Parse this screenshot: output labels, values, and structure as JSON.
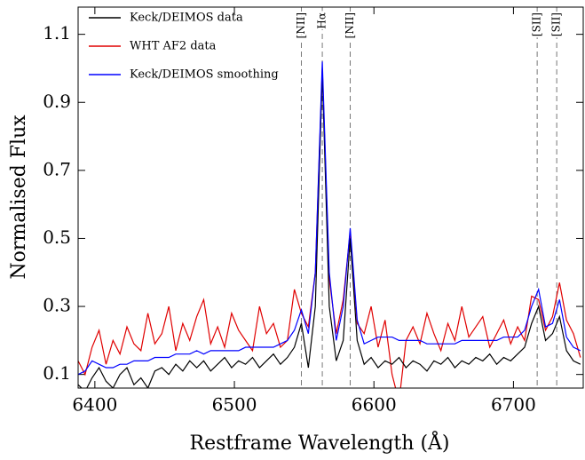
{
  "chart_data": {
    "type": "line",
    "xlabel": "Restframe Wavelength (Å)",
    "ylabel": "Normalised Flux",
    "x": [
      6388,
      6393,
      6398,
      6403,
      6408,
      6413,
      6418,
      6423,
      6428,
      6433,
      6438,
      6443,
      6448,
      6453,
      6458,
      6463,
      6468,
      6473,
      6478,
      6483,
      6488,
      6493,
      6498,
      6503,
      6508,
      6513,
      6518,
      6523,
      6528,
      6533,
      6538,
      6543,
      6548,
      6553,
      6558,
      6563,
      6568,
      6573,
      6578,
      6583,
      6588,
      6593,
      6598,
      6603,
      6608,
      6613,
      6618,
      6623,
      6628,
      6633,
      6638,
      6643,
      6648,
      6653,
      6658,
      6663,
      6668,
      6673,
      6678,
      6683,
      6688,
      6693,
      6698,
      6703,
      6708,
      6713,
      6718,
      6723,
      6728,
      6733,
      6738,
      6743,
      6748
    ],
    "series": [
      {
        "name": "Keck/DEIMOS data",
        "color": "#000000",
        "values": [
          0.07,
          0.05,
          0.09,
          0.12,
          0.08,
          0.06,
          0.1,
          0.12,
          0.07,
          0.09,
          0.06,
          0.11,
          0.12,
          0.1,
          0.13,
          0.11,
          0.14,
          0.12,
          0.14,
          0.11,
          0.13,
          0.15,
          0.12,
          0.14,
          0.13,
          0.15,
          0.12,
          0.14,
          0.16,
          0.13,
          0.15,
          0.18,
          0.25,
          0.12,
          0.3,
          0.99,
          0.3,
          0.14,
          0.2,
          0.5,
          0.2,
          0.13,
          0.15,
          0.12,
          0.14,
          0.13,
          0.15,
          0.12,
          0.14,
          0.13,
          0.11,
          0.14,
          0.13,
          0.15,
          0.12,
          0.14,
          0.13,
          0.15,
          0.14,
          0.16,
          0.13,
          0.15,
          0.14,
          0.16,
          0.18,
          0.25,
          0.3,
          0.2,
          0.22,
          0.27,
          0.17,
          0.14,
          0.13
        ]
      },
      {
        "name": "WHT AF2 data",
        "color": "#e00000",
        "values": [
          0.14,
          0.1,
          0.18,
          0.23,
          0.13,
          0.2,
          0.16,
          0.24,
          0.19,
          0.17,
          0.28,
          0.19,
          0.22,
          0.3,
          0.17,
          0.25,
          0.2,
          0.27,
          0.32,
          0.19,
          0.24,
          0.18,
          0.28,
          0.23,
          0.2,
          0.17,
          0.3,
          0.22,
          0.25,
          0.18,
          0.2,
          0.35,
          0.28,
          0.24,
          0.4,
          1.0,
          0.38,
          0.22,
          0.32,
          0.52,
          0.25,
          0.22,
          0.3,
          0.18,
          0.26,
          0.1,
          0.02,
          0.2,
          0.24,
          0.19,
          0.28,
          0.22,
          0.17,
          0.25,
          0.2,
          0.3,
          0.21,
          0.24,
          0.27,
          0.18,
          0.22,
          0.26,
          0.19,
          0.24,
          0.2,
          0.33,
          0.32,
          0.23,
          0.27,
          0.37,
          0.26,
          0.22,
          0.15
        ]
      },
      {
        "name": "Keck/DEIMOS smoothing",
        "color": "#0000ff",
        "values": [
          0.1,
          0.11,
          0.14,
          0.13,
          0.12,
          0.12,
          0.13,
          0.13,
          0.14,
          0.14,
          0.14,
          0.15,
          0.15,
          0.15,
          0.16,
          0.16,
          0.16,
          0.17,
          0.16,
          0.17,
          0.17,
          0.17,
          0.17,
          0.17,
          0.18,
          0.18,
          0.18,
          0.18,
          0.18,
          0.19,
          0.2,
          0.23,
          0.29,
          0.22,
          0.4,
          1.02,
          0.4,
          0.2,
          0.3,
          0.53,
          0.26,
          0.19,
          0.2,
          0.21,
          0.21,
          0.21,
          0.2,
          0.2,
          0.2,
          0.2,
          0.19,
          0.19,
          0.19,
          0.19,
          0.19,
          0.2,
          0.2,
          0.2,
          0.2,
          0.2,
          0.2,
          0.21,
          0.21,
          0.21,
          0.23,
          0.3,
          0.35,
          0.24,
          0.25,
          0.32,
          0.21,
          0.18,
          0.17
        ]
      }
    ],
    "annotations": [
      {
        "x": 6548,
        "label": "[NII]"
      },
      {
        "x": 6563,
        "label": "Hα"
      },
      {
        "x": 6583,
        "label": "[NII]"
      },
      {
        "x": 6717,
        "label": "[SII]"
      },
      {
        "x": 6731,
        "label": "[SII]"
      }
    ],
    "xlim": [
      6388,
      6750
    ],
    "xticks": [
      6400,
      6500,
      6600,
      6700
    ],
    "ylim": [
      0.06,
      1.18
    ],
    "yticks": [
      0.1,
      0.3,
      0.5,
      0.7,
      0.9,
      1.1
    ],
    "legend": "upper left"
  }
}
